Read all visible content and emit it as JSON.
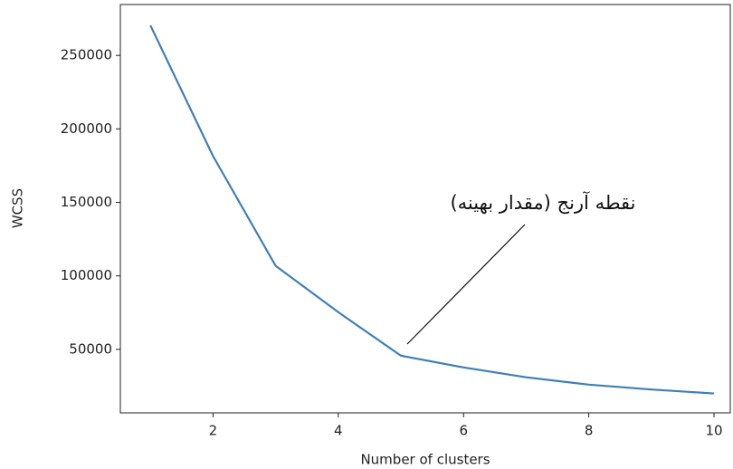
{
  "chart_data": {
    "type": "line",
    "x_label": "Number of clusters",
    "y_label": "WCSS",
    "x": [
      1,
      2,
      3,
      4,
      5,
      6,
      7,
      8,
      9,
      10
    ],
    "series": [
      {
        "name": "WCSS",
        "color": "#3f7fb5",
        "values": [
          270400,
          181500,
          106800,
          75300,
          45700,
          37700,
          31000,
          26000,
          22700,
          20000
        ]
      }
    ],
    "xlim": [
      0.52,
      10.26
    ],
    "xticks": [
      2,
      4,
      6,
      8,
      10
    ],
    "ylim": [
      6800,
      284600
    ],
    "yticks": [
      50000,
      100000,
      150000,
      200000,
      250000
    ],
    "annotation": {
      "text": "نقطه آرنج (مقدار بهینه)"
    }
  }
}
